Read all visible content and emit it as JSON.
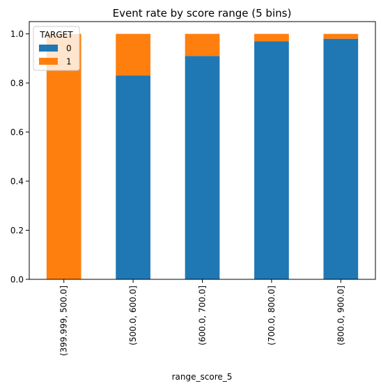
{
  "chart_data": {
    "type": "bar",
    "stacked": true,
    "title": "Event rate by score range (5 bins)",
    "xlabel": "range_score_5",
    "ylabel": "",
    "ylim": [
      0,
      1.05
    ],
    "yticks": [
      "0.0",
      "0.2",
      "0.4",
      "0.6",
      "0.8",
      "1.0"
    ],
    "categories": [
      "(399.999, 500.0]",
      "(500.0, 600.0]",
      "(600.0, 700.0]",
      "(700.0, 800.0]",
      "(800.0, 900.0]"
    ],
    "series": [
      {
        "name": "0",
        "color": "#1f77b4",
        "values": [
          0.0,
          0.83,
          0.91,
          0.97,
          0.98
        ]
      },
      {
        "name": "1",
        "color": "#ff7f0e",
        "values": [
          1.0,
          0.17,
          0.09,
          0.03,
          0.02
        ]
      }
    ],
    "legend": {
      "title": "TARGET",
      "position": "top-left"
    },
    "grid": false
  }
}
